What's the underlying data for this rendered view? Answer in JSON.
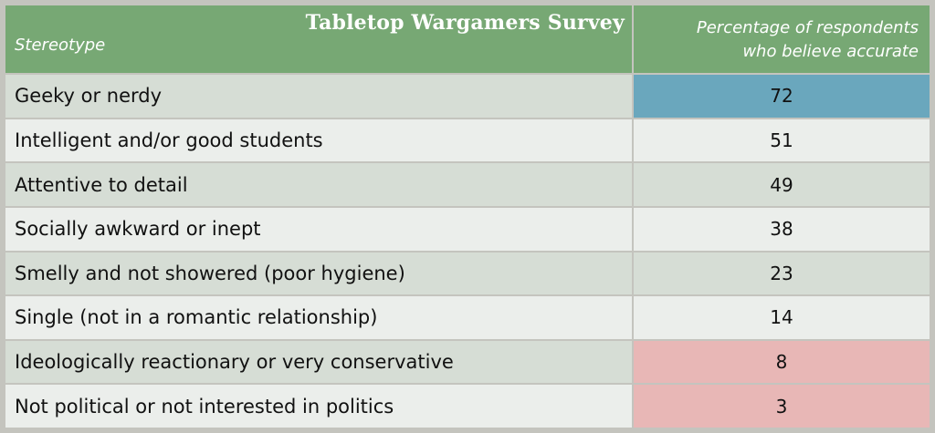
{
  "title": "Tabletop Wargamers Survey",
  "chart_data": {
    "type": "table",
    "title": "Tabletop Wargamers Survey",
    "columns": [
      "Stereotype",
      "Percentage of respondents who believe accurate"
    ],
    "rows": [
      {
        "label": "Geeky or nerdy",
        "value": 72,
        "highlight": "#6aa7bd"
      },
      {
        "label": "Intelligent and/or good students",
        "value": 51,
        "highlight": ""
      },
      {
        "label": "Attentive to detail",
        "value": 49,
        "highlight": ""
      },
      {
        "label": "Socially awkward or inept",
        "value": 38,
        "highlight": ""
      },
      {
        "label": "Smelly and not showered (poor hygiene)",
        "value": 23,
        "highlight": ""
      },
      {
        "label": "Single (not in a romantic relationship)",
        "value": 14,
        "highlight": ""
      },
      {
        "label": "Ideologically reactionary or very conservative",
        "value": 8,
        "highlight": "#e8b7b6"
      },
      {
        "label": "Not political or not interested in politics",
        "value": 3,
        "highlight": "#e8b7b6"
      }
    ]
  },
  "header": {
    "col1": "Stereotype",
    "col2_line1": "Percentage of respondents",
    "col2_line2": "who believe accurate"
  },
  "colors": {
    "header_bg": "#77a874",
    "row_band_dark": "#d6ddd5",
    "row_band_light": "#ebeeeb",
    "high_highlight": "#6aa7bd",
    "low_highlight": "#e8b7b6"
  }
}
